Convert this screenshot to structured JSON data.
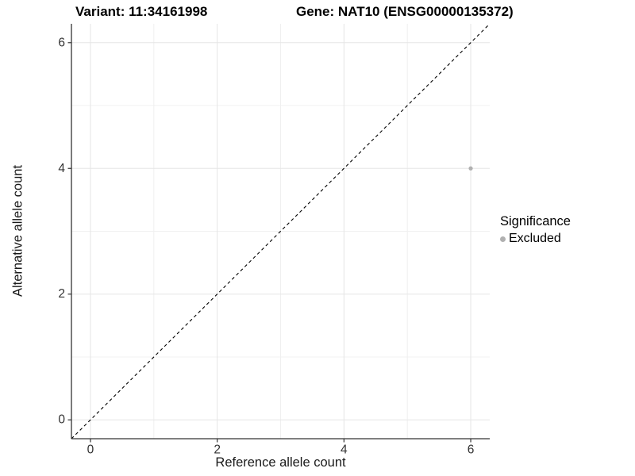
{
  "titles": {
    "variant": "Variant: 11:34161998",
    "gene": "Gene: NAT10 (ENSG00000135372)"
  },
  "chart_data": {
    "type": "scatter",
    "title_left": "Variant: 11:34161998",
    "title_right": "Gene: NAT10 (ENSG00000135372)",
    "xlabel": "Reference allele count",
    "ylabel": "Alternative allele count",
    "x_ticks": [
      0,
      2,
      4,
      6
    ],
    "y_ticks": [
      0,
      2,
      4,
      6
    ],
    "x_minor_ticks": [
      1,
      3,
      5
    ],
    "y_minor_ticks": [
      1,
      3,
      5
    ],
    "xlim": [
      -0.3,
      6.3
    ],
    "ylim": [
      -0.3,
      6.3
    ],
    "grid": true,
    "legend_position": "right",
    "identity_line": {
      "equation": "y = x",
      "style": "dashed",
      "color": "#000000"
    },
    "series": [
      {
        "name": "Excluded",
        "color": "#b0b0b0",
        "marker_radius": 2.6,
        "points": [
          {
            "x": 6,
            "y": 4
          }
        ]
      }
    ],
    "legend": {
      "title": "Significance",
      "entries": [
        {
          "label": "Excluded",
          "color": "#b0b0b0"
        }
      ]
    },
    "colors": {
      "axis_line": "#333333",
      "tick_text": "#333333",
      "grid_major": "#e5e5e5",
      "grid_minor": "#f0f0f0",
      "background": "#ffffff"
    }
  }
}
